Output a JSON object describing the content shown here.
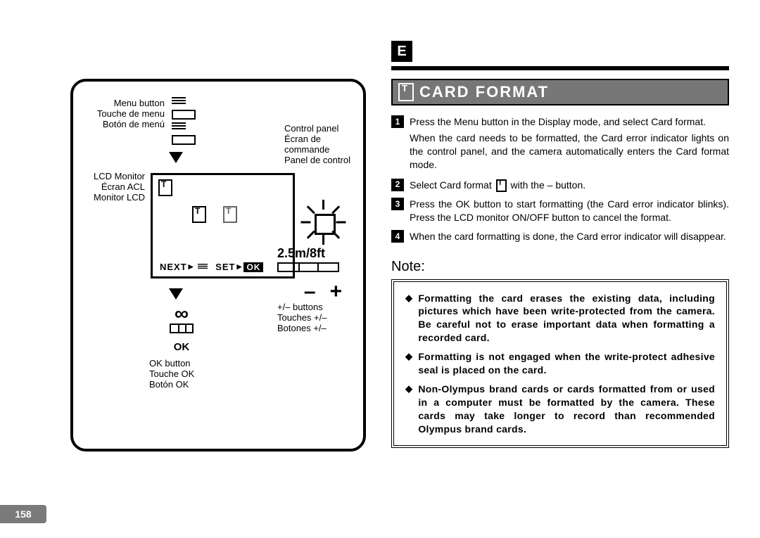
{
  "page_number": "158",
  "language_badge": "E",
  "title": "CARD FORMAT",
  "illustration": {
    "menu_button": {
      "en": "Menu button",
      "fr": "Touche de menu",
      "es": "Botón de menú"
    },
    "lcd_monitor": {
      "en": "LCD Monitor",
      "fr": "Écran ACL",
      "es": "Monitor LCD"
    },
    "control_panel": {
      "en": "Control panel",
      "fr": "Écran de commande",
      "es": "Panel de control"
    },
    "ok_button": {
      "en": "OK button",
      "fr": "Touche OK",
      "es": "Botón OK"
    },
    "pm_buttons": {
      "en": "+/–  buttons",
      "fr": "Touches +/–",
      "es": "Botones +/–"
    },
    "lcd_next": "NEXT",
    "lcd_set": "SET",
    "lcd_ok_chip": "OK",
    "ok_label_big": "OK",
    "distance": "2.5m/8ft",
    "minus": "–",
    "plus": "+"
  },
  "steps": [
    {
      "n": "1",
      "text": "Press the Menu button in the Display mode, and select Card format."
    },
    {
      "sub": "When the card needs to be formatted, the Card error indicator lights on the control panel, and the camera automatically enters the Card format mode."
    },
    {
      "n": "2",
      "text_before": "Select Card format ",
      "text_after": " with the – button.",
      "has_icon": true
    },
    {
      "n": "3",
      "text": "Press the OK button to start formatting (the Card error indicator blinks). Press the LCD monitor ON/OFF button to cancel the format."
    },
    {
      "n": "4",
      "text": "When the card formatting is done, the Card error indicator will disappear."
    }
  ],
  "note_heading": "Note:",
  "notes": [
    "Formatting the card erases the existing data, including pictures which have been write-protected from the camera. Be careful not to erase important data when formatting a recorded card.",
    "Formatting is not engaged when the write-protect adhesive seal is placed on the card.",
    "Non-Olympus brand cards or cards formatted from or used in a computer must be formatted by the camera. These cards may take longer to record than recommended Olympus brand cards."
  ],
  "colors": {
    "gray": "#7a7a7a"
  }
}
